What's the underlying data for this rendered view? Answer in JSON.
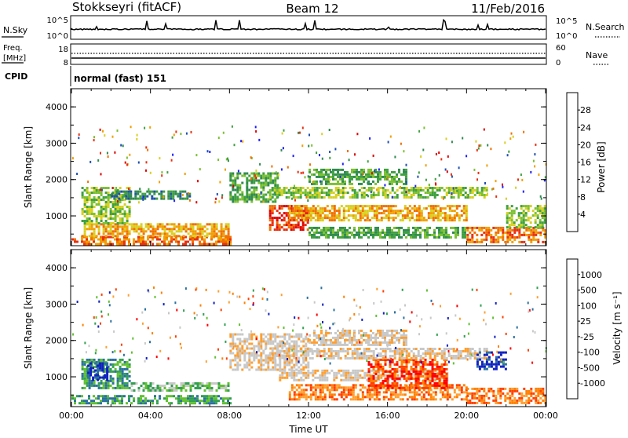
{
  "header": {
    "station": "Stokkseyri (fitACF)",
    "beam": "Beam 12",
    "date": "11/Feb/2016"
  },
  "strips": {
    "nsky_label": "N.Sky",
    "nsky_top": "10^5",
    "nsky_bottom": "10^0",
    "nsearch_label": "N.Search",
    "nsearch_top": "10^5",
    "nsearch_bottom": "10^0",
    "freq_label": "Freq.",
    "freq_unit": "[MHz]",
    "freq_top": "18",
    "freq_bottom": "8",
    "nave_label": "Nave",
    "nave_top": "60",
    "nave_bottom": "0",
    "cpid_label": "CPID",
    "cpid_value": "normal (fast) 151"
  },
  "colors": {
    "power": [
      "#2020ff",
      "#2050b0",
      "#2f8a50",
      "#3fa040",
      "#7cc030",
      "#d8d020",
      "#f0a000",
      "#f07000",
      "#e83010",
      "#e00000"
    ],
    "velocity": [
      "#ff0000",
      "#ff4000",
      "#ff8000",
      "#ff9f30",
      "#c8c8c8",
      "#c8c8c8",
      "#60c030",
      "#30a050",
      "#2a70a0",
      "#1020c0"
    ],
    "grid_bg": "#ffffff"
  },
  "chart_data": [
    {
      "type": "heatmap",
      "name": "power",
      "ylabel": "Slant Range [km]",
      "xlabel": "",
      "x_ticks": [
        "00:00",
        "04:00",
        "08:00",
        "12:00",
        "16:00",
        "20:00",
        "00:00"
      ],
      "y_ticks": [
        "1000",
        "2000",
        "3000",
        "4000"
      ],
      "ylim": [
        180,
        4500
      ],
      "xlim_hours": [
        0,
        24
      ],
      "colorbar_label": "Power [dB]",
      "colorbar_ticks": [
        "4",
        "8",
        "12",
        "16",
        "20",
        "24",
        "28"
      ],
      "bands": [
        {
          "t0": 0.0,
          "t1": 8.0,
          "r0": 250,
          "r1": 450,
          "level": 7
        },
        {
          "t0": 0.5,
          "t1": 8.0,
          "r0": 450,
          "r1": 800,
          "level": 6
        },
        {
          "t0": 0.5,
          "t1": 3.0,
          "r0": 800,
          "r1": 1800,
          "level": 4
        },
        {
          "t0": 2.0,
          "t1": 6.0,
          "r0": 1500,
          "r1": 1700,
          "level": 2
        },
        {
          "t0": 8.0,
          "t1": 10.5,
          "r0": 1400,
          "r1": 2200,
          "level": 3
        },
        {
          "t0": 10.0,
          "t1": 12.0,
          "r0": 600,
          "r1": 1300,
          "level": 8
        },
        {
          "t0": 11.0,
          "t1": 20.0,
          "r0": 900,
          "r1": 1300,
          "level": 6
        },
        {
          "t0": 10.0,
          "t1": 21.0,
          "r0": 1500,
          "r1": 1800,
          "level": 4
        },
        {
          "t0": 12.0,
          "t1": 17.0,
          "r0": 1900,
          "r1": 2300,
          "level": 3
        },
        {
          "t0": 12.0,
          "t1": 20.0,
          "r0": 400,
          "r1": 700,
          "level": 3
        },
        {
          "t0": 20.0,
          "t1": 24.0,
          "r0": 300,
          "r1": 700,
          "level": 7
        },
        {
          "t0": 22.0,
          "t1": 24.0,
          "r0": 700,
          "r1": 1300,
          "level": 4
        }
      ]
    },
    {
      "type": "heatmap",
      "name": "velocity",
      "ylabel": "Slant Range [km]",
      "xlabel": "Time UT",
      "x_ticks": [
        "00:00",
        "04:00",
        "08:00",
        "12:00",
        "16:00",
        "20:00",
        "00:00"
      ],
      "y_ticks": [
        "1000",
        "2000",
        "3000",
        "4000"
      ],
      "ylim": [
        180,
        4500
      ],
      "xlim_hours": [
        0,
        24
      ],
      "colorbar_label": "Velocity [m s⁻¹]",
      "colorbar_ticks": [
        "-1000",
        "-500",
        "-100",
        "-25",
        "25",
        "100",
        "500",
        "1000"
      ],
      "bands": [
        {
          "t0": 0.0,
          "t1": 8.0,
          "r0": 300,
          "r1": 500,
          "level": 7
        },
        {
          "t0": 3.0,
          "t1": 8.0,
          "r0": 600,
          "r1": 850,
          "level": 6
        },
        {
          "t0": 0.5,
          "t1": 3.0,
          "r0": 700,
          "r1": 1500,
          "level": 7
        },
        {
          "t0": 0.8,
          "t1": 1.8,
          "r0": 900,
          "r1": 1400,
          "level": 9
        },
        {
          "t0": 8.0,
          "t1": 12.0,
          "r0": 1200,
          "r1": 2200,
          "level": 4
        },
        {
          "t0": 10.5,
          "t1": 19.0,
          "r0": 900,
          "r1": 1200,
          "level": 4
        },
        {
          "t0": 11.0,
          "t1": 20.0,
          "r0": 400,
          "r1": 800,
          "level": 2
        },
        {
          "t0": 15.0,
          "t1": 19.0,
          "r0": 700,
          "r1": 1500,
          "level": 1
        },
        {
          "t0": 10.0,
          "t1": 21.0,
          "r0": 1500,
          "r1": 1800,
          "level": 4
        },
        {
          "t0": 12.0,
          "t1": 17.0,
          "r0": 1900,
          "r1": 2300,
          "level": 4
        },
        {
          "t0": 20.0,
          "t1": 24.0,
          "r0": 300,
          "r1": 700,
          "level": 2
        },
        {
          "t0": 20.5,
          "t1": 22.0,
          "r0": 1200,
          "r1": 1700,
          "level": 9
        }
      ]
    }
  ]
}
